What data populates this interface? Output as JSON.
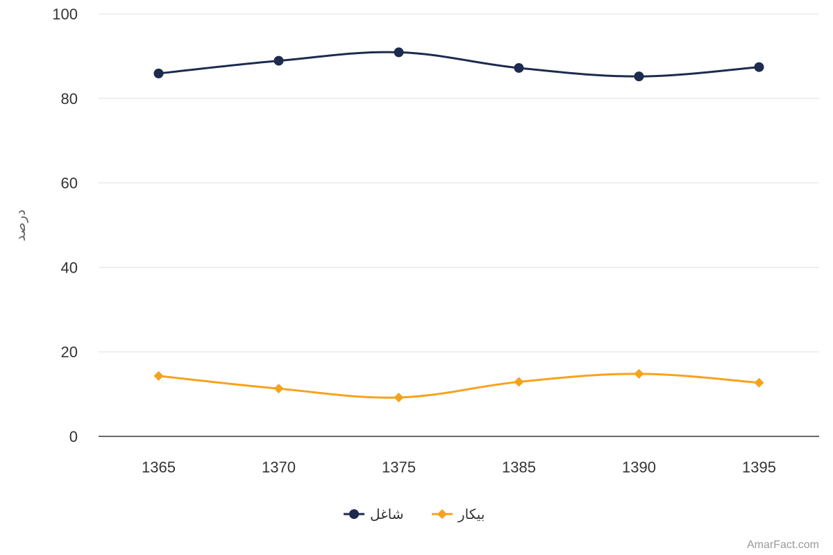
{
  "chart_data": {
    "type": "line",
    "categories": [
      "1365",
      "1370",
      "1375",
      "1385",
      "1390",
      "1395"
    ],
    "series": [
      {
        "name": "شاغل",
        "values": [
          85.9,
          88.9,
          90.9,
          87.2,
          85.2,
          87.4
        ],
        "color": "#1c2b4e",
        "marker": "circle"
      },
      {
        "name": "بیکار",
        "values": [
          14.3,
          11.3,
          9.2,
          12.9,
          14.8,
          12.7
        ],
        "color": "#f7a21b",
        "marker": "diamond"
      }
    ],
    "ylabel": "درصد",
    "xlabel": "",
    "ylim": [
      0,
      100
    ],
    "yticks": [
      0,
      20,
      40,
      60,
      80,
      100
    ],
    "grid": true,
    "smooth": true,
    "legend_position": "bottom-center"
  },
  "credit": "AmarFact.com"
}
